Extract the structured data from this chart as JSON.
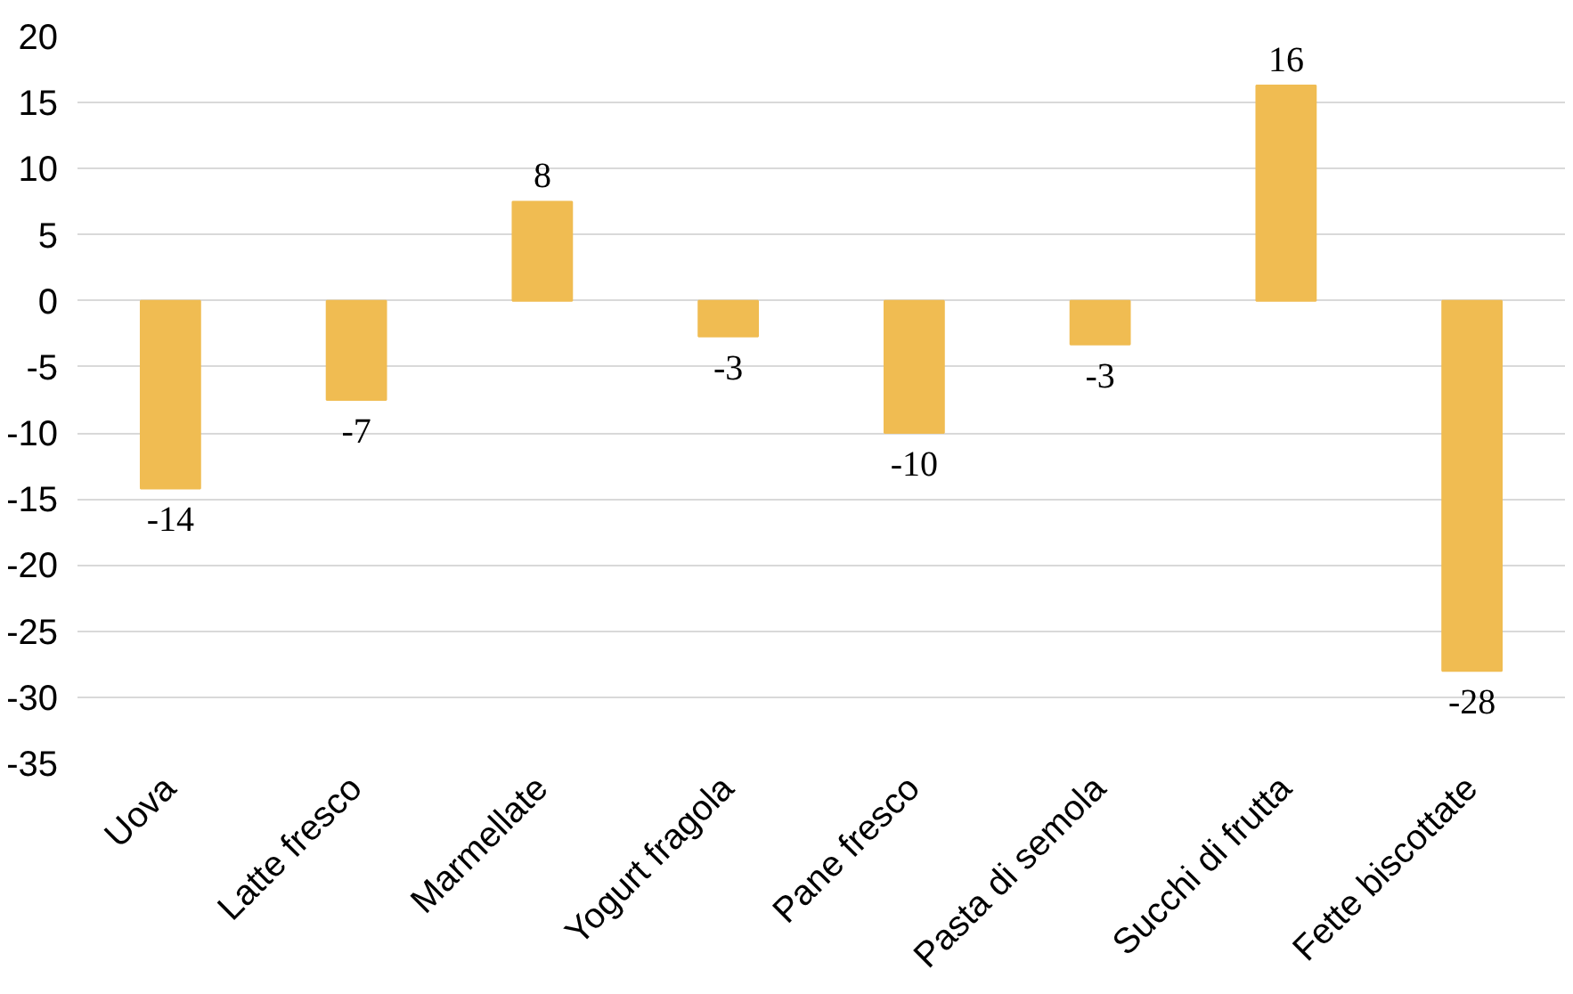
{
  "chart_data": {
    "type": "bar",
    "categories": [
      "Uova",
      "Latte fresco",
      "Marmellate",
      "Yogurt fragola",
      "Pane fresco",
      "Pasta di semola",
      "Succhi di frutta",
      "Fette biscottate"
    ],
    "values": [
      -14.2,
      -7.5,
      7.5,
      -2.7,
      -10.0,
      -3.3,
      16.3,
      -28.0
    ],
    "value_labels": [
      "-14",
      "-7",
      "8",
      "-3",
      "-10",
      "-3",
      "16",
      "-28"
    ],
    "color": "#f0bc52",
    "ylim": [
      -35,
      20
    ],
    "yticks": [
      -35,
      -30,
      -25,
      -20,
      -15,
      -10,
      -5,
      0,
      5,
      10,
      15,
      20
    ],
    "grid": "y"
  }
}
